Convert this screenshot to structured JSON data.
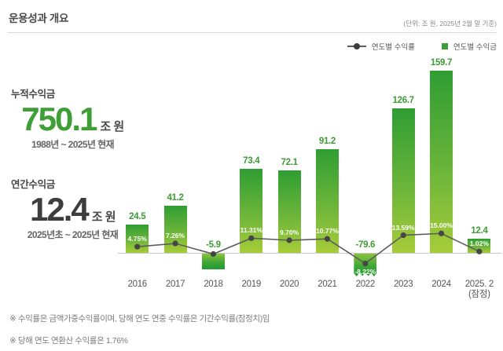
{
  "header": {
    "title": "운용성과 개요",
    "unit_note": "(단위: 조 원, 2025년 2월 말 기준)"
  },
  "legend": {
    "rate_label": "연도별 수익률",
    "amount_label": "연도별 수익금"
  },
  "stats": {
    "cumulative": {
      "label": "누적수익금",
      "value": "750.1",
      "unit": "조 원",
      "period": "1988년 ~ 2025년 현재"
    },
    "annual": {
      "label": "연간수익금",
      "value": "12.4",
      "unit": "조 원",
      "period": "2025년초 ~ 2025년 현재"
    }
  },
  "chart_data": {
    "type": "bar",
    "combo": "bar+line",
    "categories": [
      "2016",
      "2017",
      "2018",
      "2019",
      "2020",
      "2021",
      "2022",
      "2023",
      "2024",
      "2025. 2\n(잠정)"
    ],
    "series": [
      {
        "name": "연도별 수익금",
        "type": "bar",
        "unit": "조 원",
        "values": [
          24.5,
          41.2,
          -5.9,
          73.4,
          72.1,
          91.2,
          -79.6,
          126.7,
          159.7,
          12.4
        ],
        "value_labels": [
          "24.5",
          "41.2",
          "-5.9",
          "73.4",
          "72.1",
          "91.2",
          "-79.6",
          "126.7",
          "159.7",
          "12.4"
        ]
      },
      {
        "name": "연도별 수익률",
        "type": "line",
        "unit": "%",
        "values": [
          4.75,
          7.26,
          -0.9,
          11.31,
          9.7,
          10.77,
          -8.22,
          13.59,
          15.0,
          1.02
        ],
        "value_labels": [
          "4.75%",
          "7.26%",
          null,
          "11.31%",
          "9.70%",
          "10.77%",
          "-8.22%",
          "13.59%",
          "15.00%",
          "1.02%"
        ]
      }
    ],
    "ylim_bars": [
      -80,
      160
    ],
    "grid": false,
    "legend_position": "top-right",
    "colors": {
      "bar_gradient_top": "#2f9d33",
      "bar_gradient_bottom": "#a6cc39",
      "negative_bar_top": "#8cc43d",
      "negative_bar_bottom": "#219a32",
      "line": "#5c5c5c",
      "marker": "#464646",
      "value_label": "#3f9c35",
      "rate_label_text": "#ffffff",
      "accent_green": "#3f9e35"
    }
  },
  "footnotes": {
    "note1": "※ 수익률은 금액가중수익률이며, 당해 연도 연중 수익률은 기간수익률(잠정치)임",
    "note2": "※ 당해 연도 연환산 수익률은 1.76%"
  }
}
